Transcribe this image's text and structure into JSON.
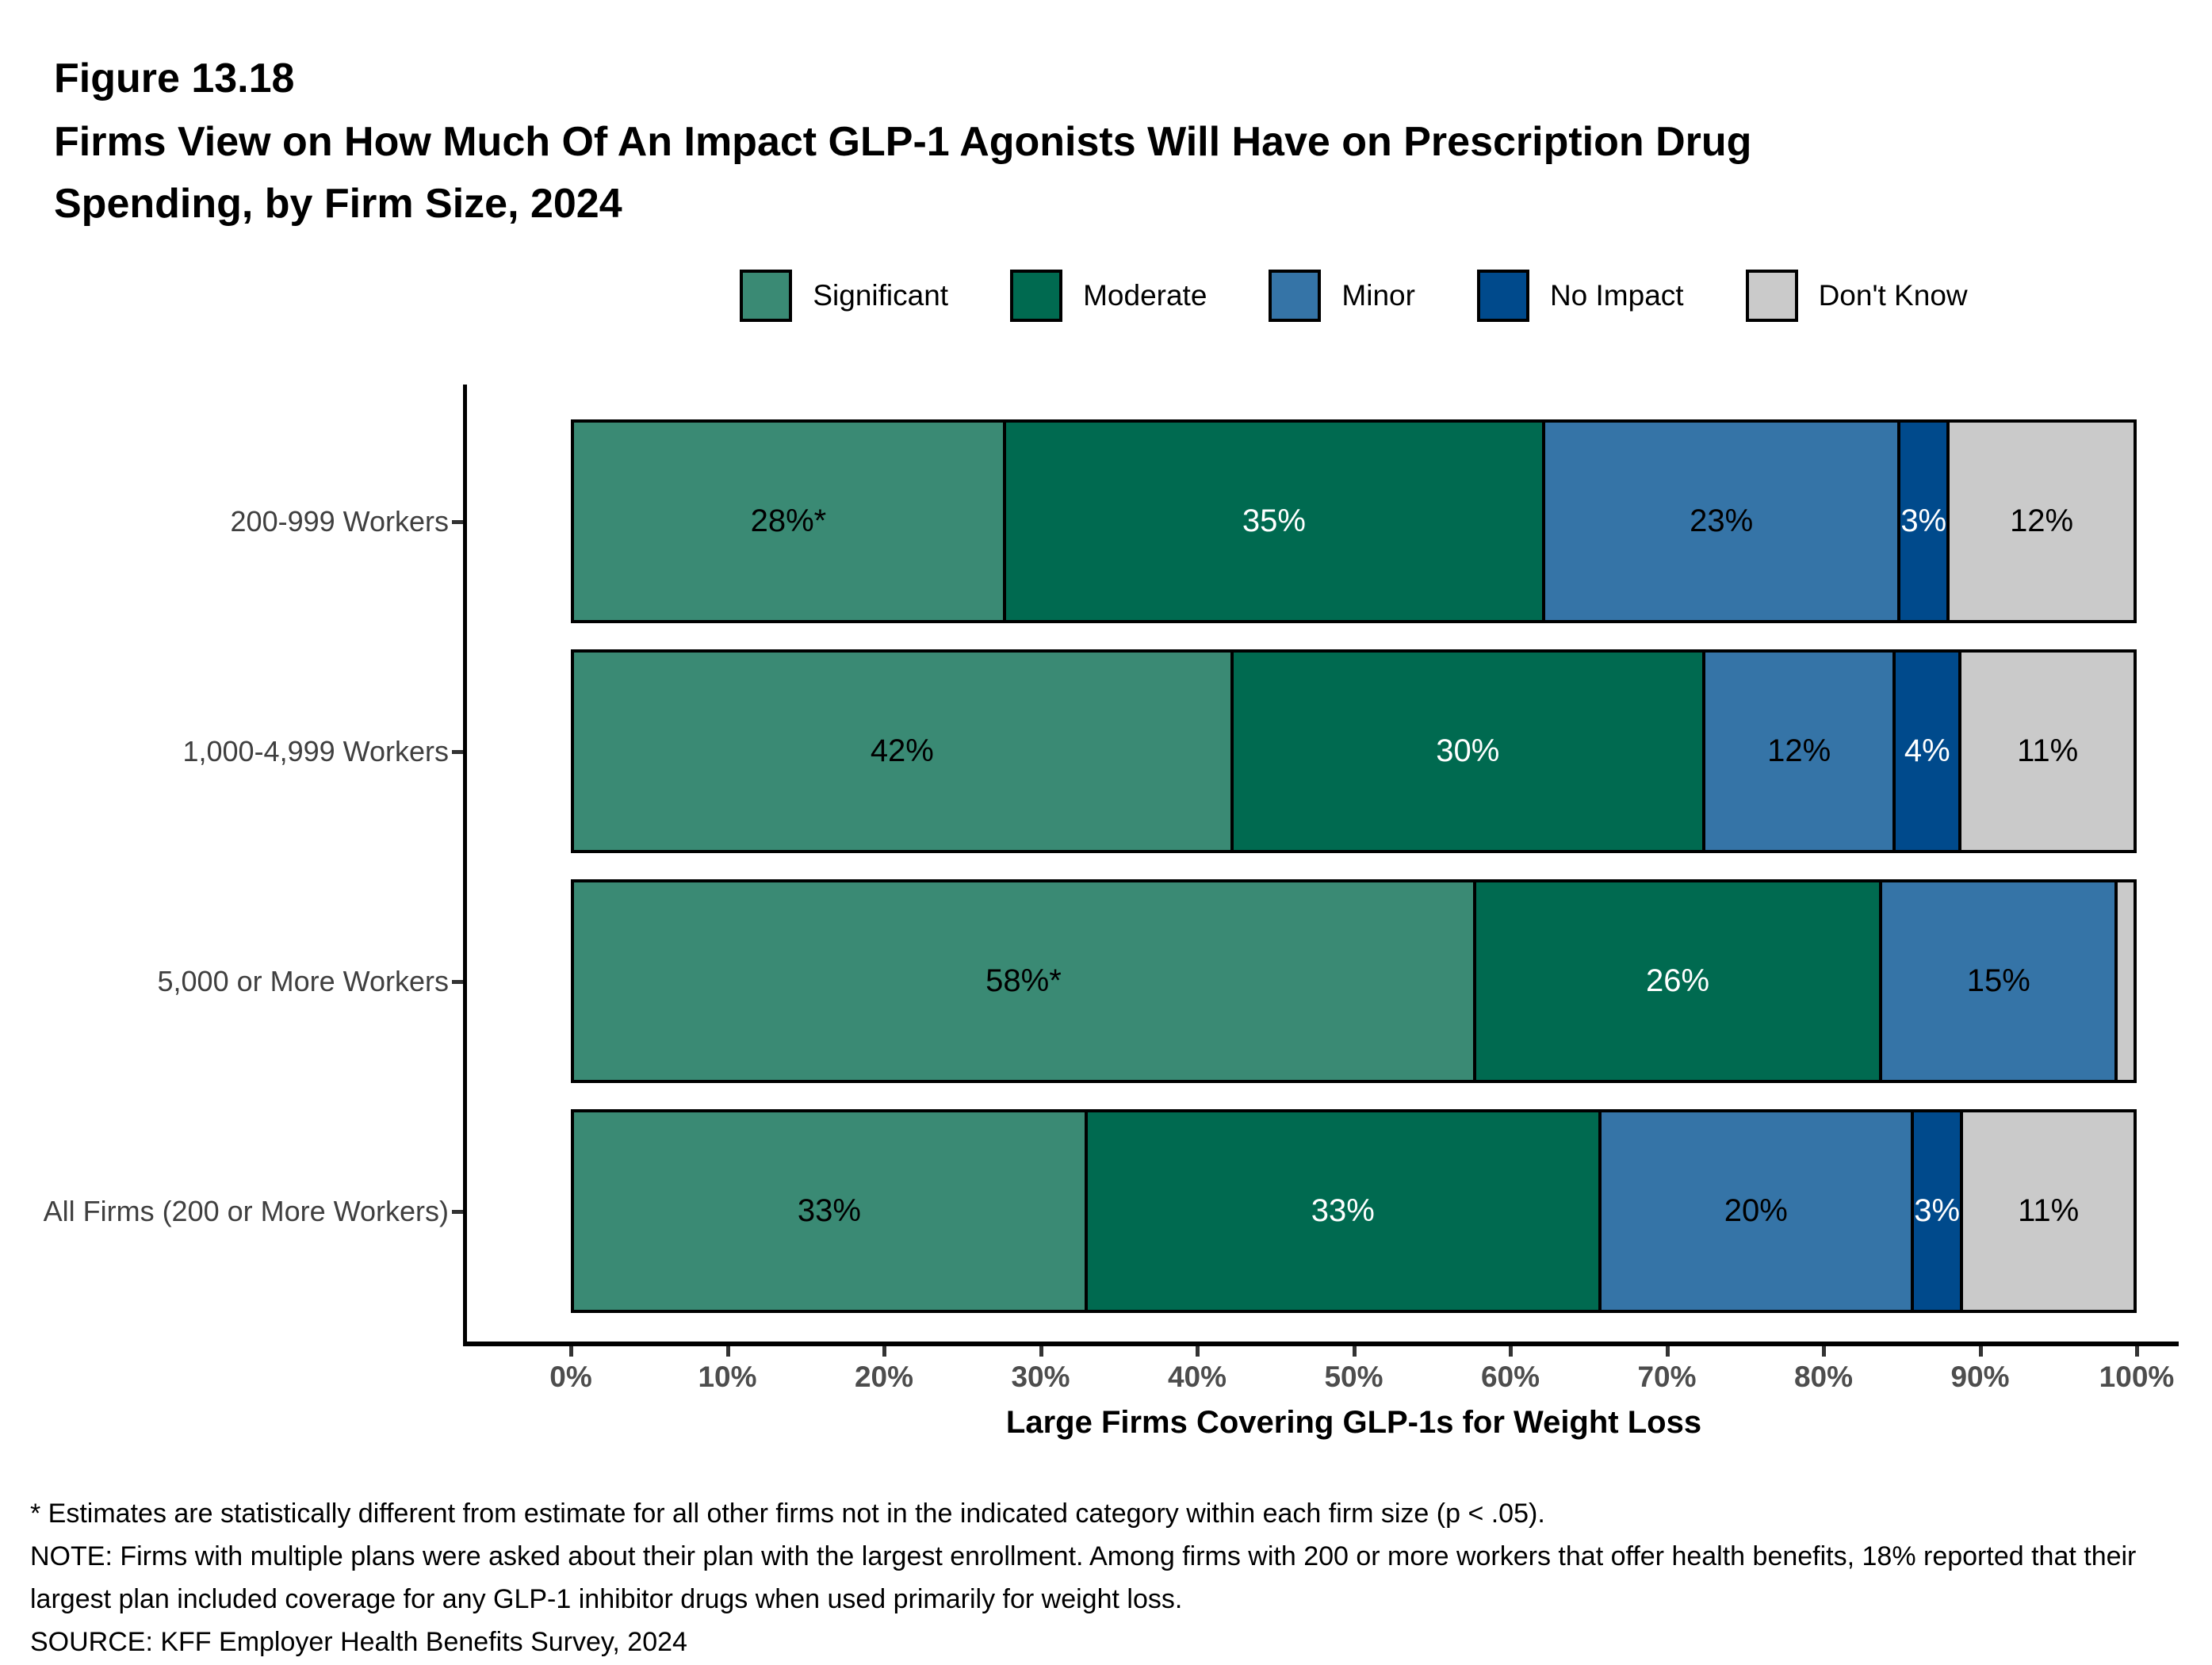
{
  "header": {
    "figure_label": "Figure 13.18",
    "title_lines": [
      "Firms View on How Much Of An Impact GLP-1 Agonists Will Have on Prescription Drug",
      "Spending, by Firm Size, 2024"
    ]
  },
  "footnotes": {
    "star": "* Estimates are statistically different from estimate for all other firms not in the indicated category within each firm size (p < .05).",
    "note": "NOTE: Firms with multiple plans were asked about their plan with the largest enrollment.  Among firms with 200 or more workers that offer health benefits, 18% reported that their largest plan included coverage for any GLP-1 inhibitor drugs when used primarily for weight loss.",
    "source": "SOURCE: KFF Employer Health Benefits Survey, 2024"
  },
  "chart_data": {
    "type": "bar",
    "stacked": true,
    "orientation": "horizontal",
    "title": "Firms View on How Much Of An Impact GLP-1 Agonists Will Have on Prescription Drug Spending, by Firm Size, 2024",
    "xlabel": "Large Firms Covering GLP-1s for Weight Loss",
    "ylabel": "",
    "xlim": [
      0,
      100
    ],
    "grid": false,
    "legend_position": "top",
    "x_ticks": [
      "0%",
      "10%",
      "20%",
      "30%",
      "40%",
      "50%",
      "60%",
      "70%",
      "80%",
      "90%",
      "100%"
    ],
    "x_tick_values": [
      0,
      10,
      20,
      30,
      40,
      50,
      60,
      70,
      80,
      90,
      100
    ],
    "categories": [
      "200-999 Workers",
      "1,000-4,999 Workers",
      "5,000 or More Workers",
      "All Firms (200 or More Workers)"
    ],
    "series": [
      {
        "name": "Significant",
        "color": "#3A8A74",
        "label_color": "#000000",
        "values": [
          28,
          42,
          58,
          33
        ],
        "labels": [
          "28%*",
          "42%",
          "58%*",
          "33%"
        ]
      },
      {
        "name": "Moderate",
        "color": "#006A50",
        "label_color": "#ffffff",
        "values": [
          35,
          30,
          26,
          33
        ],
        "labels": [
          "35%",
          "30%",
          "26%",
          "33%"
        ]
      },
      {
        "name": "Minor",
        "color": "#3574A7",
        "label_color": "#000000",
        "values": [
          23,
          12,
          15,
          20
        ],
        "labels": [
          "23%",
          "12%",
          "15%",
          "20%"
        ]
      },
      {
        "name": "No Impact",
        "color": "#004A8C",
        "label_color": "#ffffff",
        "values": [
          3,
          4,
          0,
          3
        ],
        "labels": [
          "3%",
          "4%",
          "",
          "3%"
        ]
      },
      {
        "name": "Don't Know",
        "color": "#CACACA",
        "label_color": "#000000",
        "values": [
          12,
          11,
          1,
          11
        ],
        "labels": [
          "12%",
          "11%",
          "",
          "11%"
        ]
      }
    ]
  }
}
